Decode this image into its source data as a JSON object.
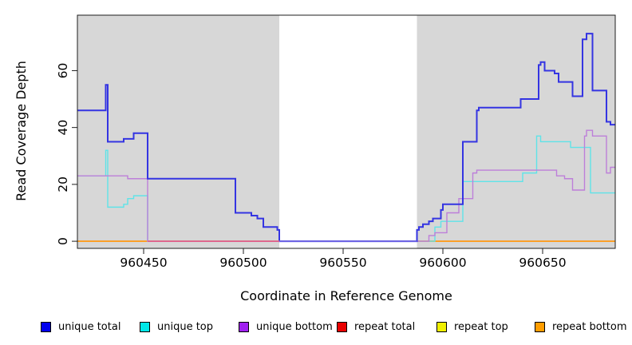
{
  "axes": {
    "xlabel": "Coordinate in Reference Genome",
    "ylabel": "Read Coverage Depth"
  },
  "chart_data": {
    "type": "line",
    "subtype": "step-after",
    "title": "",
    "xlabel": "Coordinate in Reference Genome",
    "ylabel": "Read Coverage Depth",
    "x_ticks": [
      960450,
      960500,
      960550,
      960600,
      960650
    ],
    "y_ticks": [
      0,
      20,
      40,
      60
    ],
    "xlim": [
      960416.8,
      960686.4
    ],
    "ylim": [
      -2.5,
      79.5
    ],
    "grid": false,
    "plot_bg": "#d7d7d7",
    "no_data_region": {
      "from": 960518,
      "to": 960587,
      "color": "#ffffff"
    },
    "legend_position": "bottom",
    "series": [
      {
        "name": "repeat top",
        "color": "#f0e626",
        "line_width": 1.5,
        "points": [
          [
            960416.8,
            0
          ]
        ]
      },
      {
        "name": "repeat total",
        "color": "#e03030",
        "line_width": 1.5,
        "points": [
          [
            960416.8,
            0
          ]
        ]
      },
      {
        "name": "repeat bottom",
        "color": "#ff9e1c",
        "line_width": 1.7,
        "points": [
          [
            960416.8,
            0
          ]
        ]
      },
      {
        "name": "unique top",
        "color": "#5fe3e8",
        "line_width": 1.4,
        "points": [
          [
            960416.8,
            23
          ],
          [
            960431,
            32
          ],
          [
            960432,
            12
          ],
          [
            960440,
            13
          ],
          [
            960442,
            15
          ],
          [
            960445,
            16
          ],
          [
            960452,
            0
          ],
          [
            960596,
            5
          ],
          [
            960599,
            7
          ],
          [
            960610,
            21
          ],
          [
            960640,
            24
          ],
          [
            960647,
            37
          ],
          [
            960649,
            35
          ],
          [
            960664,
            33
          ],
          [
            960674,
            17
          ]
        ]
      },
      {
        "name": "unique bottom",
        "color": "#bd7fd9",
        "line_width": 1.4,
        "points": [
          [
            960416.8,
            23
          ],
          [
            960442,
            22
          ],
          [
            960452,
            0
          ],
          [
            960593,
            2
          ],
          [
            960596,
            3
          ],
          [
            960602,
            10
          ],
          [
            960608,
            15
          ],
          [
            960615,
            24
          ],
          [
            960617,
            25
          ],
          [
            960657,
            23
          ],
          [
            960661,
            22
          ],
          [
            960665,
            18
          ],
          [
            960671,
            37
          ],
          [
            960672,
            39
          ],
          [
            960675,
            37
          ],
          [
            960682,
            24
          ],
          [
            960684,
            26
          ]
        ]
      },
      {
        "name": "unique total",
        "color": "#3434e2",
        "line_width": 2,
        "points": [
          [
            960416.8,
            46
          ],
          [
            960431,
            55
          ],
          [
            960432,
            35
          ],
          [
            960440,
            36
          ],
          [
            960445,
            38
          ],
          [
            960452,
            22
          ],
          [
            960496,
            10
          ],
          [
            960504,
            9
          ],
          [
            960507,
            8
          ],
          [
            960510,
            5
          ],
          [
            960517,
            4
          ],
          [
            960518,
            0
          ],
          [
            960587,
            4
          ],
          [
            960588,
            5
          ],
          [
            960590,
            6
          ],
          [
            960593,
            7
          ],
          [
            960595,
            8
          ],
          [
            960599,
            11
          ],
          [
            960600,
            13
          ],
          [
            960610,
            35
          ],
          [
            960617,
            46
          ],
          [
            960618,
            47
          ],
          [
            960639,
            50
          ],
          [
            960648,
            62
          ],
          [
            960649,
            63
          ],
          [
            960651,
            60
          ],
          [
            960656,
            59
          ],
          [
            960658,
            56
          ],
          [
            960665,
            51
          ],
          [
            960670,
            71
          ],
          [
            960672,
            73
          ],
          [
            960675,
            53
          ],
          [
            960682,
            42
          ],
          [
            960684,
            41
          ]
        ]
      }
    ],
    "baseline_overlays": [
      {
        "from": 960452,
        "to": 960518,
        "value": 0,
        "color": "#e0608c"
      },
      {
        "from": 960518,
        "to": 960587,
        "value": 0,
        "color": "#6f66e6"
      }
    ]
  },
  "legend": {
    "items": [
      {
        "label": "unique total",
        "color": "#0000ee"
      },
      {
        "label": "unique top",
        "color": "#00e8e8"
      },
      {
        "label": "unique bottom",
        "color": "#a020f0"
      },
      {
        "label": "repeat total",
        "color": "#e80000"
      },
      {
        "label": "repeat top",
        "color": "#f0f000"
      },
      {
        "label": "repeat bottom",
        "color": "#ff9d00"
      }
    ]
  }
}
